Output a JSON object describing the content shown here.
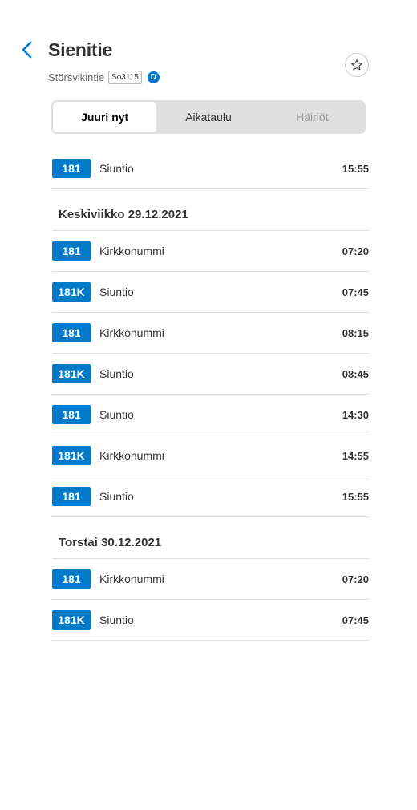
{
  "header": {
    "title": "Sienitie",
    "street": "Störsvikintie",
    "stop_code": "So3115",
    "zone": "D"
  },
  "tabs": [
    {
      "label": "Juuri nyt",
      "active": true
    },
    {
      "label": "Aikataulu",
      "active": false
    },
    {
      "label": "Häiriöt",
      "active": false,
      "disabled": true
    }
  ],
  "departures_now": [
    {
      "route": "181",
      "headsign": "Siuntio",
      "time": "15:55"
    }
  ],
  "days": [
    {
      "label": "Keskiviikko 29.12.2021",
      "departures": [
        {
          "route": "181",
          "headsign": "Kirkkonummi",
          "time": "07:20"
        },
        {
          "route": "181K",
          "headsign": "Siuntio",
          "time": "07:45"
        },
        {
          "route": "181",
          "headsign": "Kirkkonummi",
          "time": "08:15"
        },
        {
          "route": "181K",
          "headsign": "Siuntio",
          "time": "08:45"
        },
        {
          "route": "181",
          "headsign": "Siuntio",
          "time": "14:30"
        },
        {
          "route": "181K",
          "headsign": "Kirkkonummi",
          "time": "14:55"
        },
        {
          "route": "181",
          "headsign": "Siuntio",
          "time": "15:55"
        }
      ]
    },
    {
      "label": "Torstai 30.12.2021",
      "departures": [
        {
          "route": "181",
          "headsign": "Kirkkonummi",
          "time": "07:20"
        },
        {
          "route": "181K",
          "headsign": "Siuntio",
          "time": "07:45"
        }
      ]
    }
  ],
  "colors": {
    "accent": "#007ac9",
    "divider": "#dddddd"
  },
  "icons": {
    "back": "chevron-left-icon",
    "favourite": "star-outline-icon"
  }
}
